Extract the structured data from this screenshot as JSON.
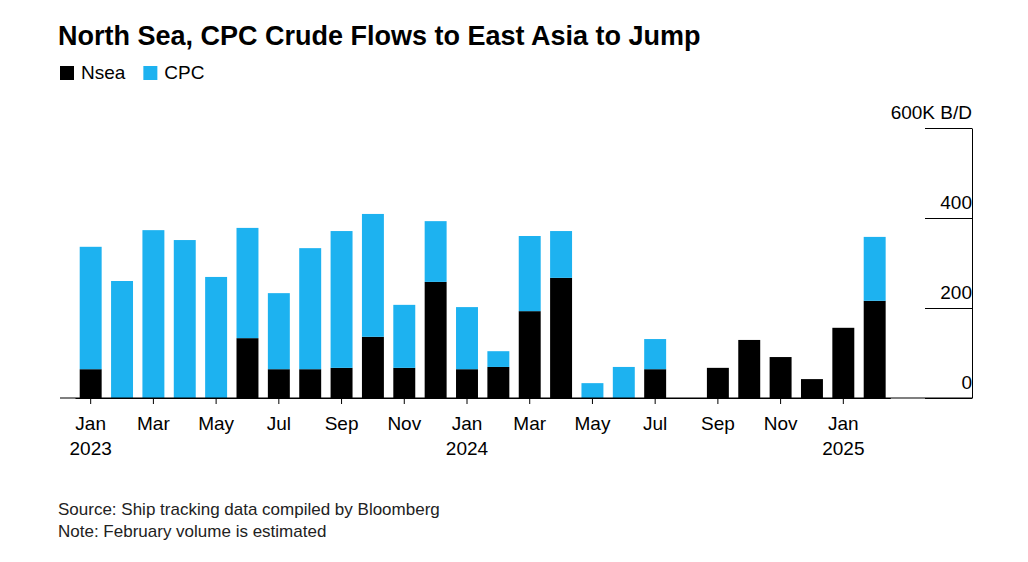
{
  "chart_data": {
    "type": "bar",
    "stacked": true,
    "title": "North Sea, CPC Crude Flows to East Asia to Jump",
    "source": "Source: Ship tracking data compiled by Bloomberg",
    "note": "Note: February volume is estimated",
    "legend": "top-left",
    "grid": false,
    "categories": [
      "Jan 2023",
      null,
      "Mar",
      null,
      "May",
      null,
      "Jul",
      null,
      "Sep",
      null,
      "Nov",
      null,
      "Jan 2024",
      null,
      "Mar",
      null,
      "May",
      null,
      "Jul",
      null,
      "Sep",
      null,
      "Nov",
      null,
      "Jan 2025",
      null
    ],
    "series": [
      {
        "name": "Nsea",
        "color": "#000000",
        "values": [
          64,
          0,
          0,
          0,
          0,
          133,
          64,
          64,
          67,
          136,
          67,
          258,
          64,
          69,
          193,
          267,
          0,
          0,
          64,
          0,
          67,
          129,
          91,
          42,
          156,
          216
        ]
      },
      {
        "name": "CPC",
        "color": "#1db2f0",
        "values": [
          272,
          260,
          373,
          351,
          269,
          245,
          169,
          269,
          304,
          273,
          140,
          135,
          138,
          35,
          167,
          104,
          33,
          69,
          67,
          0,
          0,
          0,
          0,
          0,
          0,
          142
        ]
      }
    ],
    "ylim": [
      0,
      600
    ],
    "yticks": [
      0,
      200,
      400,
      {
        "value": 600,
        "label": "600K B/D"
      }
    ]
  }
}
